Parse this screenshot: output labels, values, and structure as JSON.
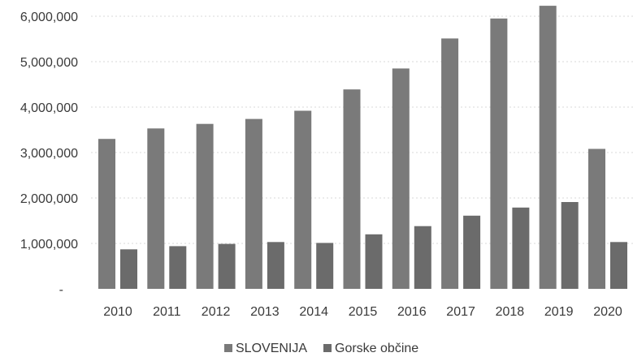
{
  "chart_data": {
    "type": "bar",
    "categories": [
      "2010",
      "2011",
      "2012",
      "2013",
      "2014",
      "2015",
      "2016",
      "2017",
      "2018",
      "2019",
      "2020"
    ],
    "series": [
      {
        "name": "SLOVENIJA",
        "color": "#7a7a7a",
        "values": [
          3300000,
          3530000,
          3630000,
          3740000,
          3920000,
          4390000,
          4850000,
          5510000,
          5950000,
          6230000,
          3080000
        ]
      },
      {
        "name": "Gorske občine",
        "color": "#6b6b6b",
        "values": [
          870000,
          940000,
          990000,
          1030000,
          1010000,
          1200000,
          1380000,
          1610000,
          1790000,
          1910000,
          1030000
        ]
      }
    ],
    "ylim": [
      0,
      6000000
    ],
    "yticks": [
      {
        "value": 0,
        "label": "-"
      },
      {
        "value": 1000000,
        "label": "1,000,000"
      },
      {
        "value": 2000000,
        "label": "2,000,000"
      },
      {
        "value": 3000000,
        "label": "3,000,000"
      },
      {
        "value": 4000000,
        "label": "4,000,000"
      },
      {
        "value": 5000000,
        "label": "5,000,000"
      },
      {
        "value": 6000000,
        "label": "6,000,000"
      }
    ],
    "grid": true,
    "legend_position": "bottom"
  }
}
